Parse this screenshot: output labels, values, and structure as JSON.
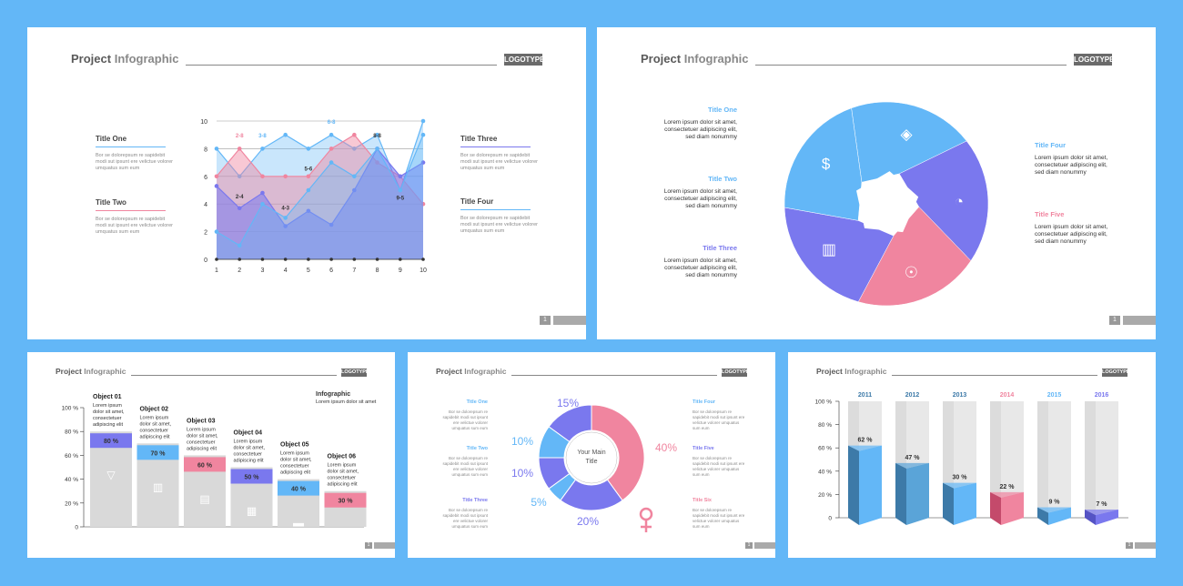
{
  "colors": {
    "background": "#63b7f7",
    "blue": "#63b7f7",
    "purple": "#7a78ee",
    "pink": "#f0859f",
    "dark_blue": "#3d7aa8",
    "gray": "#d9d9d9"
  },
  "common": {
    "title_a": "Project",
    "title_b": "Infographic",
    "logotype": "LOGOTYPE",
    "page_number": "1"
  },
  "slide1": {
    "left_titles": [
      {
        "label": "Title One",
        "text": "Bor se dolorepsum re sapidebit modi sut ipsunt ere velictue volorer umquatus sum eum"
      },
      {
        "label": "Title Two",
        "text": "Bor se dolorepsum re sapidebit modi sut ipsunt ere velictue volorer umquatus sum eum"
      }
    ],
    "right_titles": [
      {
        "label": "Title Three",
        "text": "Bor se dolorepsum re sapidebit modi sut ipsunt ere velictue volorer umquatus sum eum"
      },
      {
        "label": "Title Four",
        "text": "Bor se dolorepsum re sapidebit modi sut ipsunt ere velictue volorer umquatus sum eum"
      }
    ]
  },
  "chart_data": [
    {
      "type": "area",
      "x": [
        1,
        2,
        3,
        4,
        5,
        6,
        7,
        8,
        9,
        10
      ],
      "ylim": [
        0,
        10
      ],
      "yticks": [
        0,
        2,
        4,
        6,
        8,
        10
      ],
      "series": [
        {
          "color": "#63b7f7",
          "values": [
            8,
            6,
            8,
            9,
            8,
            9,
            8,
            9,
            5,
            10
          ]
        },
        {
          "color": "#f0859f",
          "values": [
            6,
            8,
            6,
            6,
            6,
            8,
            9,
            7,
            6,
            4
          ]
        },
        {
          "color": "#7a78ee",
          "values": [
            5.3,
            3.7,
            4.8,
            2.4,
            3.5,
            2.5,
            5,
            8,
            6,
            7
          ]
        },
        {
          "color": "#63b7f7",
          "values": [
            2,
            1,
            4,
            3,
            5,
            7,
            6,
            8,
            5,
            9
          ]
        }
      ],
      "annotations": [
        "2-8",
        "3-8",
        "6-8",
        "8-8",
        "5-6",
        "2-4",
        "4-3",
        "9-5"
      ]
    },
    {
      "type": "pie",
      "labels": [
        "Title One",
        "Title Two",
        "Title Three",
        "Title Four",
        "Title Five"
      ],
      "values": [
        20,
        20,
        20,
        20,
        20
      ],
      "icons": [
        "rocket-icon",
        "stopwatch-icon",
        "heads-icon",
        "bar-chart-icon",
        "dollar-cycle-icon"
      ]
    },
    {
      "type": "bar",
      "categories": [
        "Object 01",
        "Object 02",
        "Object 03",
        "Object 04",
        "Object 05",
        "Object 06"
      ],
      "values": [
        80,
        70,
        60,
        50,
        40,
        30
      ],
      "value_labels": [
        "80 %",
        "70 %",
        "60 %",
        "50 %",
        "40 %",
        "30 %"
      ],
      "yticks": [
        "0",
        "20 %",
        "40 %",
        "60 %",
        "80 %",
        "100 %"
      ],
      "ylim": [
        0,
        100
      ],
      "desc": "Lorem ipsum dolor sit amet, consectetuer adipiscing elit",
      "heading": "Infographic",
      "heading_text": "Lorem ipsum dolor sit amet"
    },
    {
      "type": "pie",
      "center_label": "Your Main Title",
      "values": [
        15,
        10,
        10,
        5,
        20,
        40
      ],
      "labels": [
        "15%",
        "10%",
        "10%",
        "5%",
        "20%",
        "40%"
      ],
      "legend": [
        "Title One",
        "Title Two",
        "Title Three",
        "Title Four",
        "Title Five",
        "Title Six"
      ],
      "legend_text": "Bor se dolorepsum re sapidebit modi sut ipsunt ere velictue volorer umquatus sum eum"
    },
    {
      "type": "bar",
      "categories": [
        "2011",
        "2012",
        "2013",
        "2014",
        "2015",
        "2016"
      ],
      "values": [
        62,
        47,
        30,
        22,
        9,
        7
      ],
      "value_labels": [
        "62 %",
        "47 %",
        "30 %",
        "22 %",
        "9 %",
        "7 %"
      ],
      "yticks": [
        "0",
        "20 %",
        "40 %",
        "60 %",
        "80 %",
        "100 %"
      ],
      "ylim": [
        0,
        100
      ]
    }
  ],
  "slide2": {
    "left": [
      {
        "label": "Title One",
        "text": "Lorem ipsum dolor sit amet, consectetuer adipiscing elit, sed diam nonummy"
      },
      {
        "label": "Title Two",
        "text": "Lorem ipsum dolor sit amet, consectetuer adipiscing elit, sed diam nonummy"
      },
      {
        "label": "Title Three",
        "text": "Lorem ipsum dolor sit amet, consectetuer adipiscing elit, sed diam nonummy"
      }
    ],
    "right": [
      {
        "label": "Title Four",
        "text": "Lorem ipsum dolor sit amet, consectetuer adipiscing elit, sed diam nonummy"
      },
      {
        "label": "Title Five",
        "text": "Lorem ipsum dolor sit amet, consectetuer adipiscing elit, sed diam nonummy"
      }
    ]
  }
}
